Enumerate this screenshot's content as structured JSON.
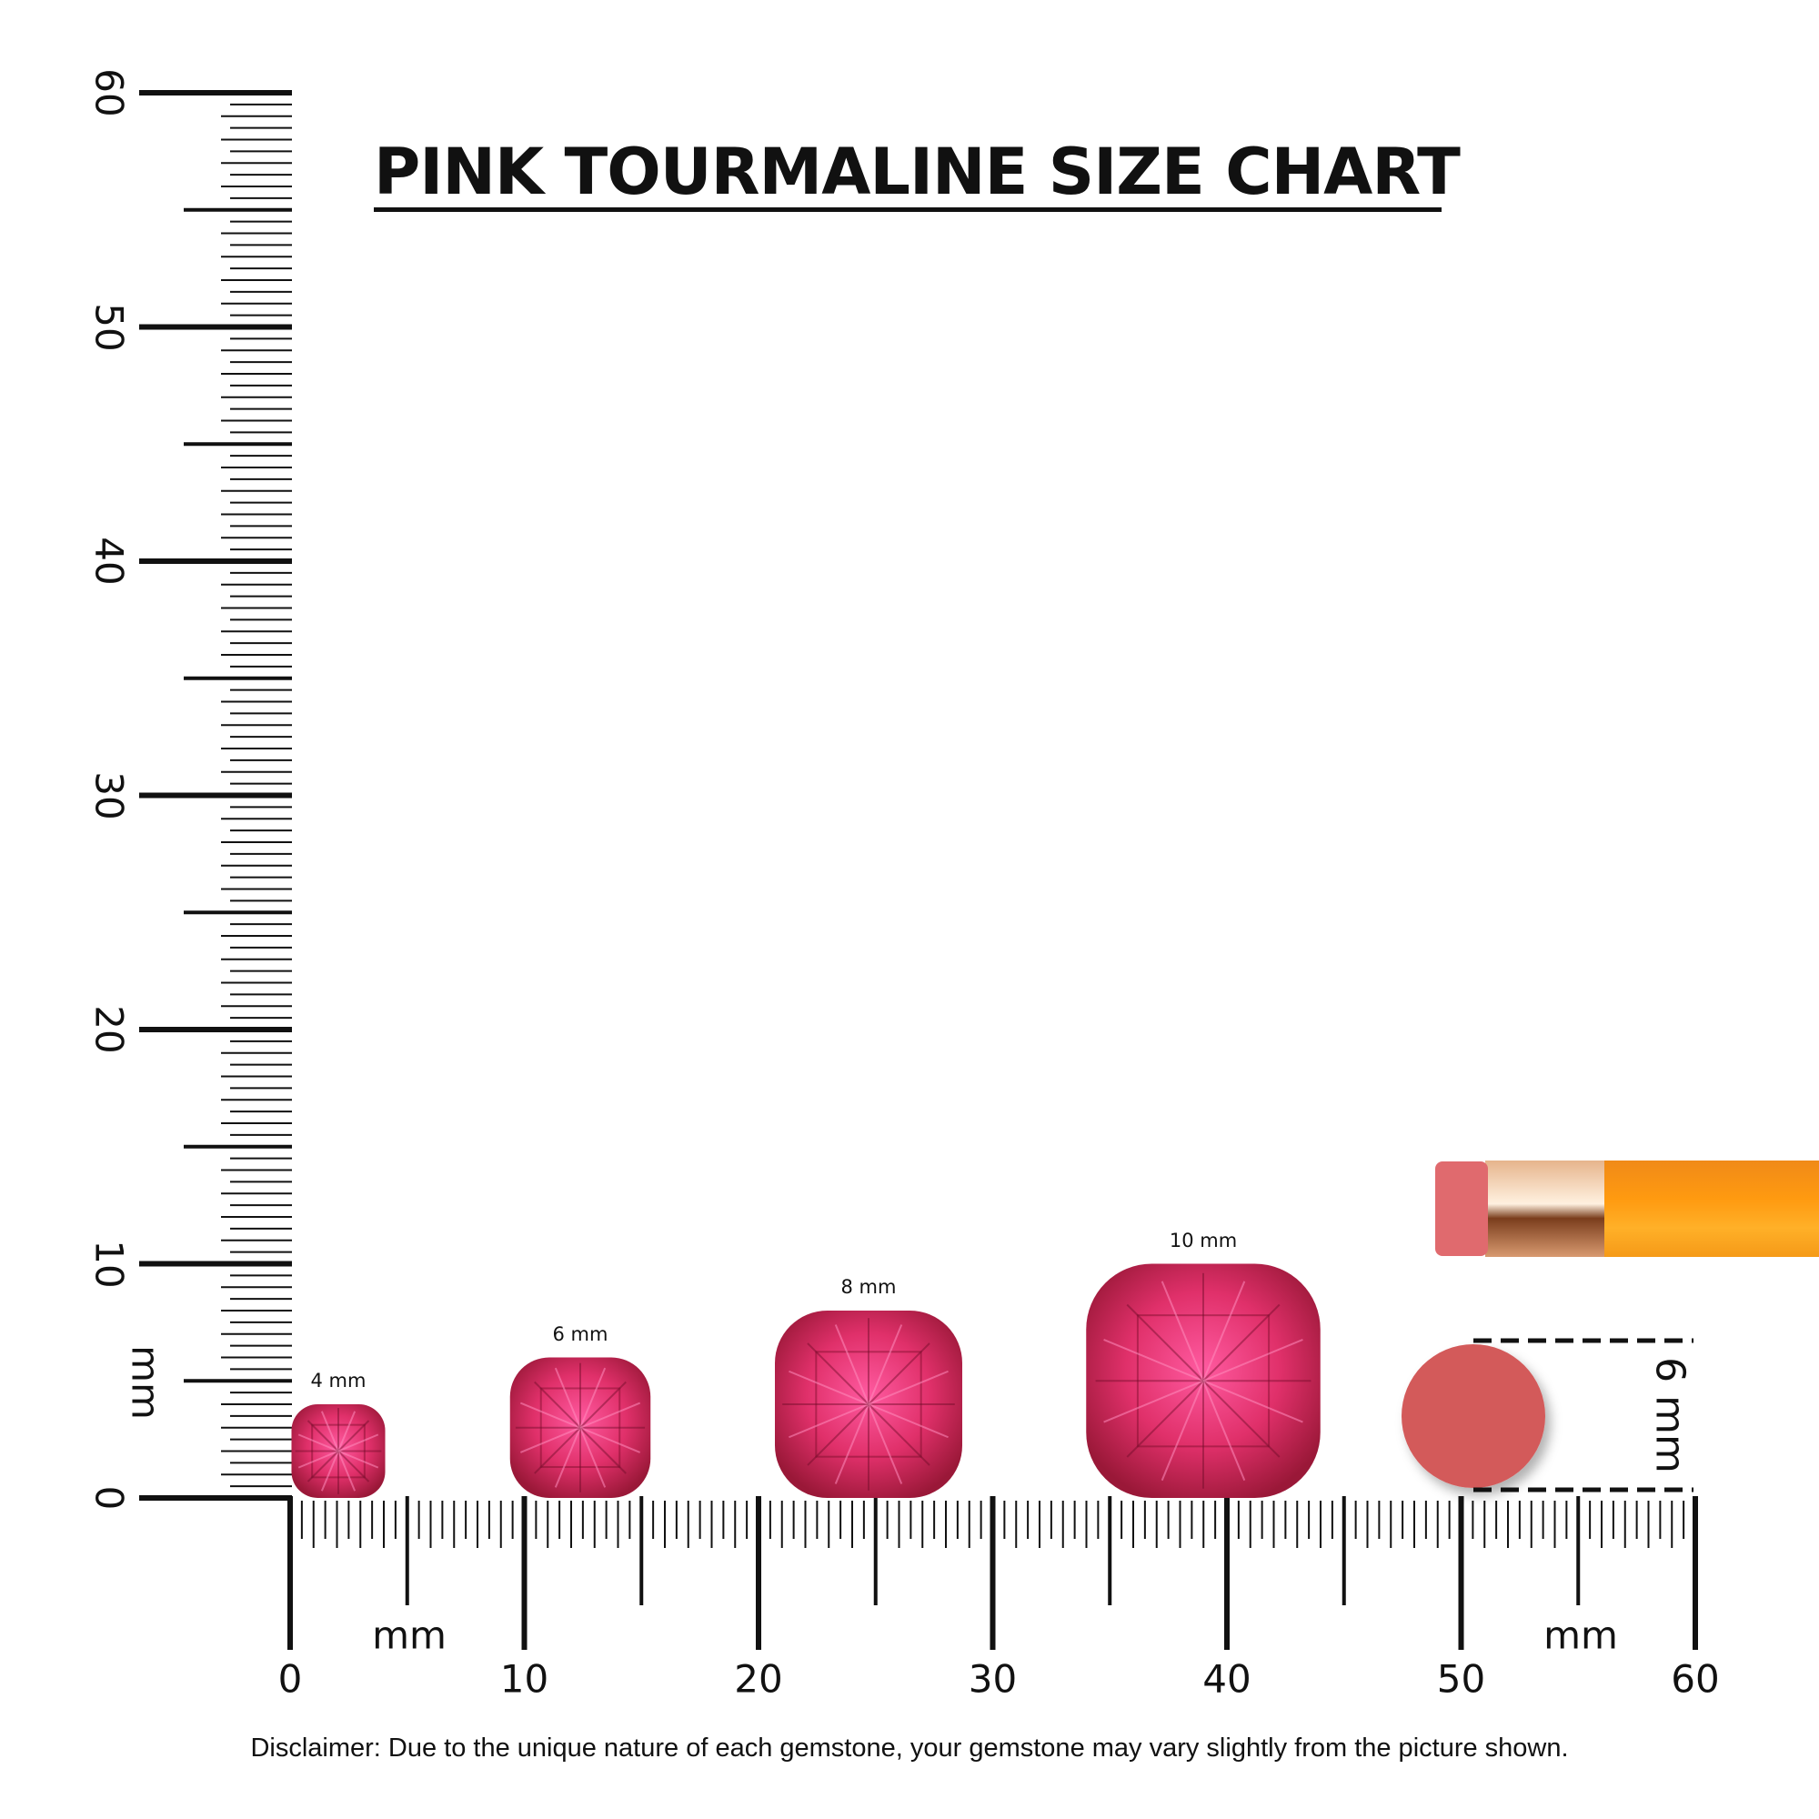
{
  "title": "PINK TOURMALINE SIZE CHART",
  "ruler": {
    "unit": "mm",
    "max_mm": 60,
    "minor_step_mm": 0.5,
    "vertical_labels": [
      "0",
      "10",
      "20",
      "30",
      "40",
      "50",
      "60"
    ],
    "horizontal_labels": [
      "0",
      "10",
      "20",
      "30",
      "40",
      "50",
      "60"
    ],
    "color": "#111111"
  },
  "gems": [
    {
      "label": "4 mm",
      "size_mm": 4
    },
    {
      "label": "6 mm",
      "size_mm": 6
    },
    {
      "label": "8 mm",
      "size_mm": 8
    },
    {
      "label": "10 mm",
      "size_mm": 10
    }
  ],
  "gem_colors": {
    "light": "#ff5aa0",
    "mid": "#e0306a",
    "dark": "#9a1838"
  },
  "eraser_reference": {
    "label": "6 mm",
    "color": "#d35a5a"
  },
  "pencil_colors": {
    "eraser": "#e06a6e",
    "ferrule": "#d8a07a",
    "body": "#ff9a10"
  },
  "disclaimer": "Disclaimer: Due to the unique nature of each gemstone, your gemstone may vary slightly from the picture shown."
}
